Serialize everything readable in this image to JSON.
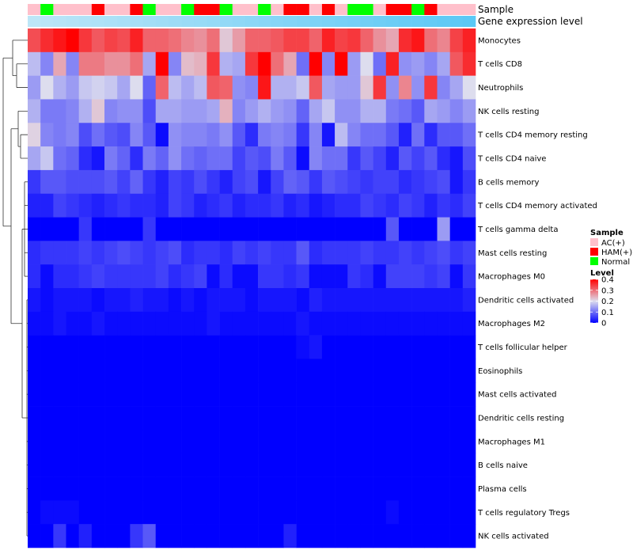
{
  "chart_data": {
    "type": "heatmap",
    "title": "",
    "annotation_rows": [
      "Sample",
      "Gene expression level"
    ],
    "rows": [
      "Monocytes",
      "T cells CD8",
      "Neutrophils",
      "NK cells resting",
      "T cells CD4 memory resting",
      "T cells CD4 naive",
      "B cells memory",
      "T cells CD4 memory activated",
      "T cells gamma delta",
      "Mast cells resting",
      "Macrophages M0",
      "Dendritic cells activated",
      "Macrophages M2",
      "T cells follicular helper",
      "Eosinophils",
      "Mast cells activated",
      "Dendritic cells resting",
      "Macrophages M1",
      "B cells naive",
      "Plasma cells",
      "T cells regulatory  Tregs",
      "NK cells activated"
    ],
    "samples": [
      "AC(+)",
      "Normal",
      "AC(+)",
      "AC(+)",
      "AC(+)",
      "HAM(+)",
      "AC(+)",
      "AC(+)",
      "HAM(+)",
      "Normal",
      "AC(+)",
      "AC(+)",
      "Normal",
      "HAM(+)",
      "HAM(+)",
      "Normal",
      "AC(+)",
      "AC(+)",
      "Normal",
      "AC(+)",
      "HAM(+)",
      "HAM(+)",
      "AC(+)",
      "HAM(+)",
      "AC(+)",
      "Normal",
      "Normal",
      "AC(+)",
      "HAM(+)",
      "HAM(+)",
      "Normal",
      "HAM(+)",
      "AC(+)",
      "AC(+)",
      "AC(+)"
    ],
    "values": [
      [
        0.33,
        0.36,
        0.38,
        0.4,
        0.35,
        0.32,
        0.34,
        0.33,
        0.37,
        0.31,
        0.31,
        0.3,
        0.28,
        0.27,
        0.3,
        0.22,
        0.26,
        0.31,
        0.31,
        0.32,
        0.34,
        0.34,
        0.31,
        0.37,
        0.34,
        0.35,
        0.31,
        0.27,
        0.25,
        0.36,
        0.38,
        0.3,
        0.28,
        0.34,
        0.37
      ],
      [
        0.17,
        0.12,
        0.25,
        0.12,
        0.29,
        0.29,
        0.27,
        0.27,
        0.3,
        0.15,
        0.4,
        0.12,
        0.23,
        0.24,
        0.35,
        0.16,
        0.15,
        0.35,
        0.4,
        0.3,
        0.25,
        0.1,
        0.4,
        0.12,
        0.4,
        0.14,
        0.2,
        0.1,
        0.37,
        0.13,
        0.14,
        0.12,
        0.15,
        0.32,
        0.36
      ],
      [
        0.14,
        0.2,
        0.16,
        0.14,
        0.18,
        0.19,
        0.18,
        0.15,
        0.2,
        0.09,
        0.31,
        0.17,
        0.15,
        0.17,
        0.32,
        0.31,
        0.13,
        0.12,
        0.38,
        0.16,
        0.16,
        0.18,
        0.32,
        0.15,
        0.14,
        0.14,
        0.22,
        0.35,
        0.13,
        0.28,
        0.13,
        0.35,
        0.12,
        0.15,
        0.2
      ],
      [
        0.16,
        0.11,
        0.11,
        0.12,
        0.16,
        0.22,
        0.12,
        0.13,
        0.13,
        0.07,
        0.15,
        0.15,
        0.14,
        0.14,
        0.15,
        0.24,
        0.12,
        0.14,
        0.16,
        0.14,
        0.13,
        0.09,
        0.15,
        0.18,
        0.13,
        0.13,
        0.16,
        0.16,
        0.11,
        0.1,
        0.08,
        0.15,
        0.14,
        0.12,
        0.14
      ],
      [
        0.21,
        0.12,
        0.11,
        0.12,
        0.07,
        0.1,
        0.08,
        0.07,
        0.12,
        0.08,
        0.01,
        0.13,
        0.12,
        0.12,
        0.11,
        0.13,
        0.08,
        0.04,
        0.11,
        0.12,
        0.11,
        0.05,
        0.12,
        0.02,
        0.17,
        0.12,
        0.1,
        0.1,
        0.08,
        0.03,
        0.1,
        0.04,
        0.08,
        0.08,
        0.1
      ],
      [
        0.15,
        0.18,
        0.1,
        0.09,
        0.04,
        0.02,
        0.11,
        0.09,
        0.04,
        0.11,
        0.09,
        0.13,
        0.1,
        0.09,
        0.1,
        0.1,
        0.06,
        0.08,
        0.07,
        0.11,
        0.08,
        0.01,
        0.12,
        0.1,
        0.1,
        0.05,
        0.08,
        0.06,
        0.03,
        0.08,
        0.06,
        0.08,
        0.04,
        0.02,
        0.07
      ],
      [
        0.05,
        0.08,
        0.08,
        0.07,
        0.07,
        0.07,
        0.08,
        0.06,
        0.09,
        0.05,
        0.03,
        0.06,
        0.05,
        0.07,
        0.05,
        0.03,
        0.06,
        0.07,
        0.02,
        0.06,
        0.09,
        0.08,
        0.05,
        0.08,
        0.07,
        0.06,
        0.05,
        0.06,
        0.06,
        0.04,
        0.05,
        0.06,
        0.07,
        0.02,
        0.05
      ],
      [
        0.03,
        0.03,
        0.06,
        0.05,
        0.04,
        0.03,
        0.04,
        0.05,
        0.04,
        0.04,
        0.03,
        0.06,
        0.05,
        0.03,
        0.04,
        0.05,
        0.03,
        0.04,
        0.04,
        0.05,
        0.03,
        0.04,
        0.02,
        0.03,
        0.04,
        0.04,
        0.06,
        0.05,
        0.04,
        0.06,
        0.05,
        0.03,
        0.05,
        0.04,
        0.06
      ],
      [
        0.0,
        0.0,
        0.0,
        0.0,
        0.05,
        0.0,
        0.0,
        0.0,
        0.0,
        0.05,
        0.0,
        0.0,
        0.0,
        0.0,
        0.0,
        0.0,
        0.0,
        0.0,
        0.0,
        0.0,
        0.0,
        0.0,
        0.0,
        0.0,
        0.0,
        0.0,
        0.0,
        0.0,
        0.08,
        0.0,
        0.0,
        0.0,
        0.14,
        0.0,
        0.0
      ],
      [
        0.04,
        0.05,
        0.05,
        0.05,
        0.06,
        0.05,
        0.06,
        0.07,
        0.06,
        0.05,
        0.06,
        0.07,
        0.04,
        0.05,
        0.05,
        0.04,
        0.06,
        0.05,
        0.06,
        0.05,
        0.05,
        0.08,
        0.04,
        0.05,
        0.05,
        0.05,
        0.06,
        0.05,
        0.05,
        0.06,
        0.05,
        0.06,
        0.07,
        0.05,
        0.06
      ],
      [
        0.04,
        0.01,
        0.04,
        0.04,
        0.05,
        0.06,
        0.05,
        0.05,
        0.05,
        0.05,
        0.06,
        0.04,
        0.05,
        0.06,
        0.01,
        0.04,
        0.01,
        0.01,
        0.05,
        0.05,
        0.04,
        0.05,
        0.01,
        0.01,
        0.01,
        0.05,
        0.04,
        0.01,
        0.06,
        0.06,
        0.06,
        0.05,
        0.06,
        0.01,
        0.05
      ],
      [
        0.02,
        0.01,
        0.02,
        0.02,
        0.02,
        0.01,
        0.02,
        0.02,
        0.03,
        0.02,
        0.02,
        0.01,
        0.02,
        0.01,
        0.02,
        0.02,
        0.02,
        0.01,
        0.02,
        0.02,
        0.02,
        0.01,
        0.03,
        0.02,
        0.02,
        0.02,
        0.02,
        0.02,
        0.02,
        0.02,
        0.02,
        0.02,
        0.02,
        0.02,
        0.03
      ],
      [
        0.01,
        0.01,
        0.02,
        0.01,
        0.01,
        0.02,
        0.01,
        0.01,
        0.01,
        0.01,
        0.01,
        0.01,
        0.01,
        0.01,
        0.02,
        0.01,
        0.01,
        0.01,
        0.01,
        0.01,
        0.01,
        0.02,
        0.01,
        0.01,
        0.01,
        0.01,
        0.01,
        0.01,
        0.01,
        0.01,
        0.01,
        0.01,
        0.01,
        0.01,
        0.01
      ],
      [
        0.0,
        0.0,
        0.0,
        0.0,
        0.0,
        0.0,
        0.0,
        0.0,
        0.0,
        0.0,
        0.0,
        0.0,
        0.0,
        0.0,
        0.0,
        0.0,
        0.0,
        0.0,
        0.0,
        0.0,
        0.0,
        0.01,
        0.02,
        0.0,
        0.0,
        0.0,
        0.0,
        0.0,
        0.0,
        0.0,
        0.0,
        0.0,
        0.0,
        0.0,
        0.0
      ],
      [
        0.0,
        0.0,
        0.0,
        0.0,
        0.0,
        0.0,
        0.0,
        0.0,
        0.0,
        0.0,
        0.0,
        0.0,
        0.0,
        0.0,
        0.0,
        0.0,
        0.0,
        0.0,
        0.0,
        0.0,
        0.0,
        0.0,
        0.0,
        0.0,
        0.0,
        0.0,
        0.0,
        0.0,
        0.0,
        0.0,
        0.0,
        0.0,
        0.0,
        0.0,
        0.0
      ],
      [
        0.0,
        0.0,
        0.0,
        0.0,
        0.0,
        0.0,
        0.0,
        0.0,
        0.0,
        0.0,
        0.0,
        0.0,
        0.0,
        0.0,
        0.0,
        0.0,
        0.0,
        0.0,
        0.0,
        0.0,
        0.0,
        0.0,
        0.0,
        0.0,
        0.0,
        0.0,
        0.0,
        0.0,
        0.0,
        0.0,
        0.0,
        0.0,
        0.0,
        0.0,
        0.0
      ],
      [
        0.0,
        0.0,
        0.0,
        0.0,
        0.0,
        0.0,
        0.0,
        0.0,
        0.0,
        0.0,
        0.0,
        0.0,
        0.0,
        0.0,
        0.0,
        0.0,
        0.0,
        0.0,
        0.0,
        0.0,
        0.0,
        0.0,
        0.0,
        0.0,
        0.0,
        0.0,
        0.0,
        0.0,
        0.0,
        0.0,
        0.0,
        0.0,
        0.0,
        0.0,
        0.0
      ],
      [
        0.0,
        0.0,
        0.0,
        0.0,
        0.0,
        0.0,
        0.0,
        0.0,
        0.0,
        0.0,
        0.0,
        0.0,
        0.0,
        0.0,
        0.0,
        0.0,
        0.0,
        0.0,
        0.0,
        0.0,
        0.0,
        0.0,
        0.0,
        0.0,
        0.0,
        0.0,
        0.0,
        0.0,
        0.0,
        0.0,
        0.0,
        0.0,
        0.0,
        0.0,
        0.0
      ],
      [
        0.0,
        0.0,
        0.0,
        0.0,
        0.0,
        0.0,
        0.0,
        0.0,
        0.0,
        0.0,
        0.0,
        0.0,
        0.0,
        0.0,
        0.0,
        0.0,
        0.0,
        0.0,
        0.0,
        0.0,
        0.0,
        0.0,
        0.0,
        0.0,
        0.0,
        0.0,
        0.0,
        0.0,
        0.0,
        0.0,
        0.0,
        0.0,
        0.0,
        0.0,
        0.0
      ],
      [
        0.0,
        0.0,
        0.0,
        0.0,
        0.0,
        0.0,
        0.0,
        0.0,
        0.0,
        0.0,
        0.0,
        0.0,
        0.0,
        0.0,
        0.0,
        0.0,
        0.0,
        0.0,
        0.0,
        0.0,
        0.0,
        0.0,
        0.0,
        0.0,
        0.0,
        0.0,
        0.0,
        0.0,
        0.0,
        0.0,
        0.0,
        0.0,
        0.0,
        0.0,
        0.0
      ],
      [
        0.0,
        0.01,
        0.01,
        0.01,
        0.0,
        0.0,
        0.0,
        0.0,
        0.0,
        0.0,
        0.0,
        0.0,
        0.0,
        0.0,
        0.0,
        0.0,
        0.0,
        0.0,
        0.0,
        0.0,
        0.0,
        0.0,
        0.0,
        0.0,
        0.0,
        0.0,
        0.0,
        0.0,
        0.01,
        0.0,
        0.0,
        0.0,
        0.0,
        0.0,
        0.0
      ],
      [
        0.0,
        0.0,
        0.05,
        0.0,
        0.03,
        0.0,
        0.0,
        0.0,
        0.05,
        0.08,
        0.0,
        0.0,
        0.0,
        0.0,
        0.0,
        0.0,
        0.0,
        0.0,
        0.0,
        0.0,
        0.03,
        0.0,
        0.0,
        0.0,
        0.0,
        0.0,
        0.0,
        0.0,
        0.0,
        0.0,
        0.0,
        0.0,
        0.0,
        0.0,
        0.0
      ]
    ],
    "color_scale": {
      "low": "#0000FF",
      "mid": "#DDDDEE",
      "high": "#FF0000",
      "min": 0,
      "max": 0.4
    },
    "gene_expression_color": "#5BC8F5",
    "gene_expression_light_color": "#BDE6F7",
    "legend": {
      "sample_title": "Sample",
      "sample_entries": [
        {
          "label": "AC(+)",
          "color": "#FFC0CB"
        },
        {
          "label": "HAM(+)",
          "color": "#FF0000"
        },
        {
          "label": "Normal",
          "color": "#00FF00"
        }
      ],
      "level_title": "Level",
      "level_ticks": [
        {
          "value": 0.4,
          "label": "0.4"
        },
        {
          "value": 0.3,
          "label": "0.3"
        },
        {
          "value": 0.2,
          "label": "0.2"
        },
        {
          "value": 0.1,
          "label": "0.1"
        },
        {
          "value": 0,
          "label": "0"
        }
      ],
      "position": "right"
    }
  }
}
